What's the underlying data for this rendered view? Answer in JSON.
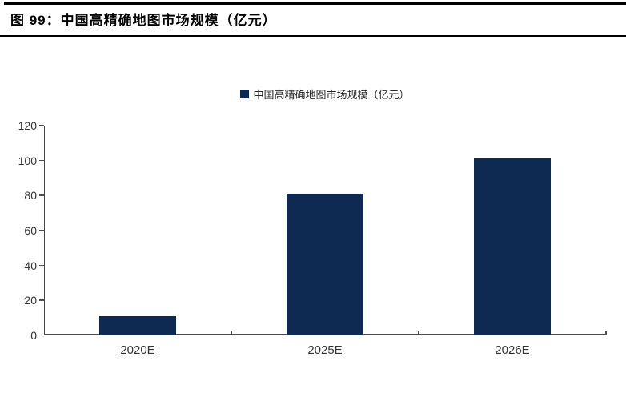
{
  "header": {
    "title": "图 99：中国高精确地图市场规模（亿元）"
  },
  "legend": {
    "label": "中国高精确地图市场规模（亿元）"
  },
  "chart_data": {
    "type": "bar",
    "title": "图 99：中国高精确地图市场规模（亿元）",
    "categories": [
      "2020E",
      "2025E",
      "2026E"
    ],
    "values": [
      11,
      81,
      101
    ],
    "series": [
      {
        "name": "中国高精确地图市场规模（亿元）",
        "values": [
          11,
          81,
          101
        ]
      }
    ],
    "legend": [
      "中国高精确地图市场规模（亿元）"
    ],
    "legend_position": "top-center",
    "xlabel": "",
    "ylabel": "",
    "unit": "亿元",
    "ylim": [
      0,
      120
    ],
    "yticks": [
      0,
      20,
      40,
      60,
      80,
      100,
      120
    ],
    "grid": false,
    "bar_color": "#0e2a52"
  },
  "colors": {
    "bar": "#0e2a52",
    "axis": "#4d4d4d",
    "label_text": "#333333",
    "rule": "#000000",
    "background": "#ffffff"
  }
}
